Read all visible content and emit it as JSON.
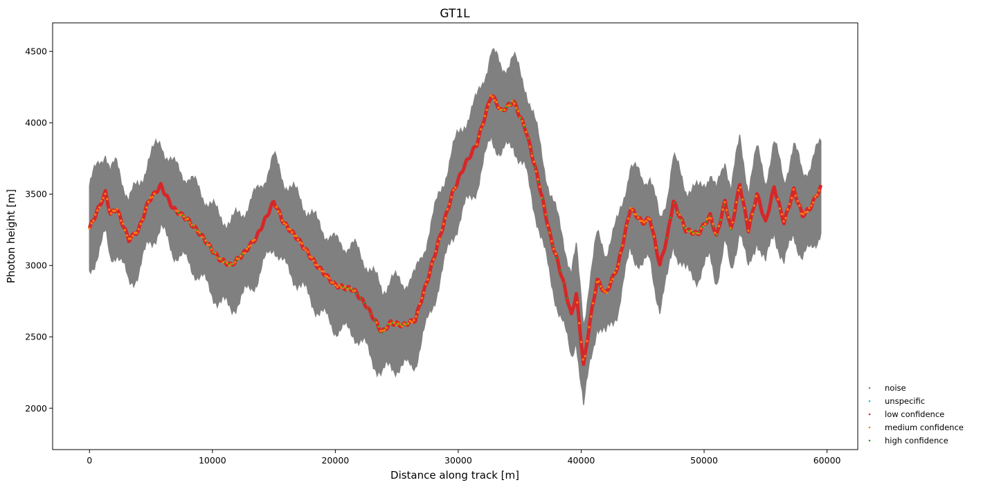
{
  "chart_data": {
    "type": "scatter",
    "title": "GT1L",
    "xlabel": "Distance along track [m]",
    "ylabel": "Photon height [m]",
    "xlim": [
      -3000,
      62500
    ],
    "ylim": [
      1710,
      4700
    ],
    "x_ticks": [
      0,
      10000,
      20000,
      30000,
      40000,
      50000,
      60000
    ],
    "y_ticks": [
      2000,
      2500,
      3000,
      3500,
      4000,
      4500
    ],
    "grid": false,
    "legend_position": "outside-bottom-right",
    "ground_profile": {
      "x": [
        0,
        1300,
        1700,
        2200,
        3200,
        4000,
        4800,
        5800,
        6800,
        8000,
        9200,
        10500,
        11500,
        12500,
        13600,
        15000,
        15800,
        17000,
        18500,
        20000,
        21500,
        22500,
        23800,
        24500,
        25500,
        26500,
        27500,
        28500,
        29500,
        30500,
        31500,
        32700,
        33500,
        34500,
        35500,
        36500,
        37500,
        38500,
        39200,
        39600,
        40200,
        40700,
        41300,
        42000,
        43000,
        44000,
        45000,
        45600,
        46400,
        47000,
        47500,
        48500,
        49500,
        50500,
        51000,
        51700,
        52200,
        52900,
        53600,
        54300,
        55000,
        55700,
        56500,
        57300,
        58000,
        58600,
        59500
      ],
      "y": [
        3260,
        3510,
        3360,
        3400,
        3180,
        3250,
        3450,
        3560,
        3400,
        3320,
        3200,
        3050,
        3000,
        3080,
        3200,
        3450,
        3300,
        3180,
        3000,
        2860,
        2830,
        2720,
        2530,
        2600,
        2580,
        2620,
        2900,
        3200,
        3500,
        3700,
        3850,
        4200,
        4080,
        4150,
        3950,
        3600,
        3200,
        2900,
        2650,
        2800,
        2300,
        2600,
        2900,
        2800,
        3000,
        3400,
        3300,
        3330,
        3000,
        3200,
        3450,
        3250,
        3220,
        3350,
        3200,
        3450,
        3250,
        3570,
        3250,
        3500,
        3300,
        3550,
        3300,
        3530,
        3350,
        3400,
        3550
      ]
    },
    "noise_halfwidth_m": 350,
    "series": [
      {
        "name": "noise",
        "color": "#808080"
      },
      {
        "name": "unspecific",
        "color": "#17becf"
      },
      {
        "name": "low confidence",
        "color": "#d62728"
      },
      {
        "name": "medium confidence",
        "color": "#ff7f0e"
      },
      {
        "name": "high confidence",
        "color": "#2ca02c"
      }
    ]
  }
}
